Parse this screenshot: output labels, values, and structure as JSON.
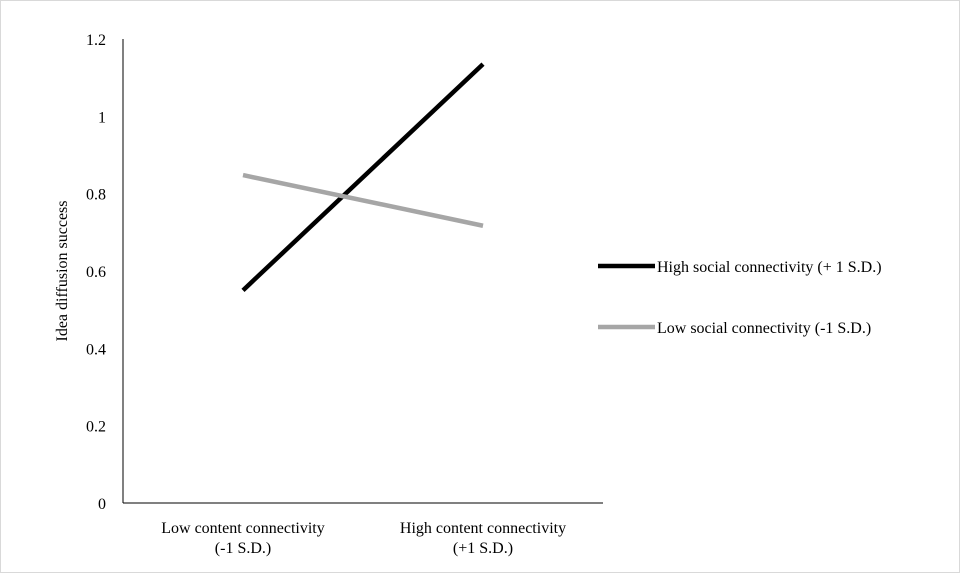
{
  "chart_data": {
    "type": "line",
    "title": "",
    "xlabel": "",
    "ylabel": "Idea diffusion success",
    "ylim": [
      0,
      1.2
    ],
    "y_ticks": [
      "0",
      "0.2",
      "0.4",
      "0.6",
      "0.8",
      "1",
      "1.2"
    ],
    "categories": [
      [
        "Low content connectivity",
        "(-1 S.D.)"
      ],
      [
        "High content connectivity",
        "(+1 S.D.)"
      ]
    ],
    "series": [
      {
        "name": "High social connectivity (+ 1 S.D.)",
        "values": [
          0.55,
          1.135
        ],
        "color": "#000000"
      },
      {
        "name": "Low social connectivity (-1 S.D.)",
        "values": [
          0.848,
          0.717
        ],
        "color": "#a6a6a6"
      }
    ],
    "grid": false,
    "legend_position": "right"
  }
}
